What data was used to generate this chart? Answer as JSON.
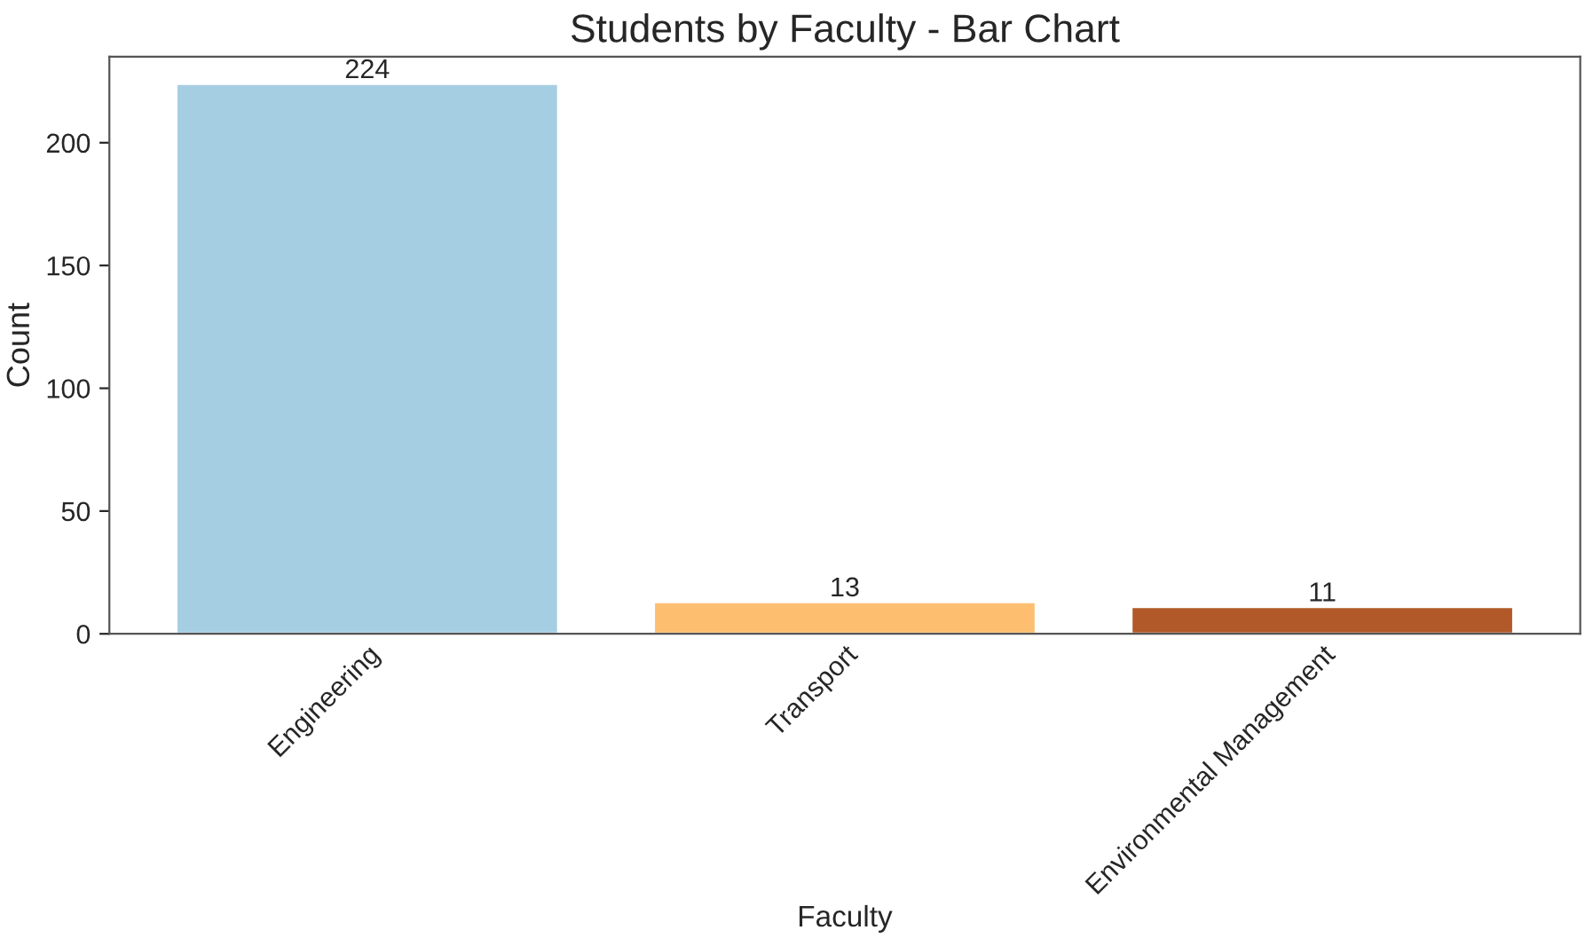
{
  "chart_data": {
    "type": "bar",
    "title": "Students by Faculty - Bar Chart",
    "xlabel": "Faculty",
    "ylabel": "Count",
    "categories": [
      "Engineering",
      "Transport",
      "Environmental Management"
    ],
    "values": [
      224,
      13,
      11
    ],
    "colors": [
      "#a6cee3",
      "#fdbf6f",
      "#b15928"
    ],
    "ylim": [
      0,
      235
    ],
    "yticks": [
      0,
      50,
      100,
      150,
      200
    ],
    "grid": false,
    "data_labels": true
  }
}
